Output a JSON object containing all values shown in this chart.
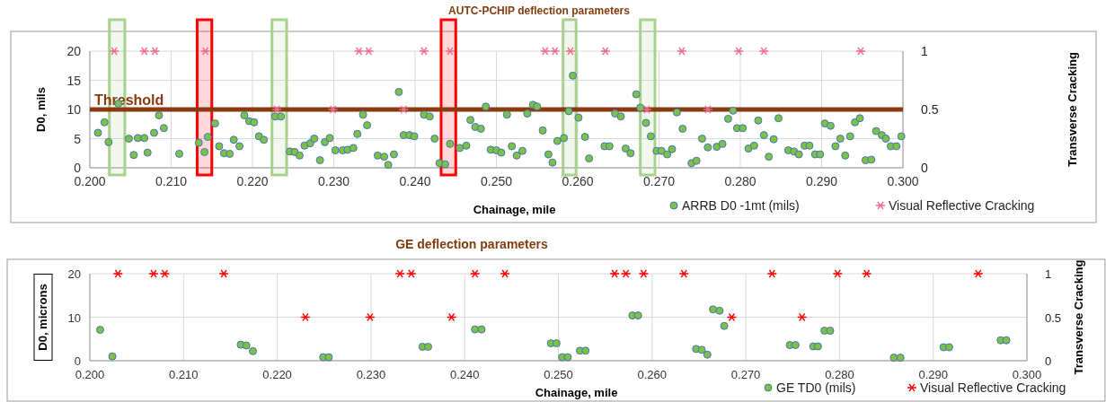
{
  "chart_data": [
    {
      "type": "scatter",
      "title": "AUTC-PCHIP deflection parameters",
      "xlabel": "Chainage, mile",
      "ylabel": "D0, mils",
      "y2label": "Transverse Cracking",
      "xlim": [
        0.2,
        0.3
      ],
      "xticks": [
        {
          "value": 0.2,
          "label": "0.200"
        },
        {
          "value": 0.21,
          "label": "0.210"
        },
        {
          "value": 0.22,
          "label": "0.220"
        },
        {
          "value": 0.23,
          "label": "0.230"
        },
        {
          "value": 0.24,
          "label": "0.240"
        },
        {
          "value": 0.25,
          "label": "0.250"
        },
        {
          "value": 0.26,
          "label": "0.260"
        },
        {
          "value": 0.27,
          "label": "0.270"
        },
        {
          "value": 0.28,
          "label": "0.280"
        },
        {
          "value": 0.29,
          "label": "0.290"
        },
        {
          "value": 0.3,
          "label": "0.300"
        }
      ],
      "ylim": [
        0,
        20
      ],
      "yticks": [
        0,
        5,
        10,
        15,
        20
      ],
      "y2lim": [
        0,
        1
      ],
      "y2ticks": [
        0,
        0.5,
        1
      ],
      "grid": true,
      "legend": "bottom right",
      "ref_lines": [
        {
          "axis": "y",
          "value": 10,
          "label": "Threshold",
          "color": "#8b3a0f"
        }
      ],
      "bands": [
        {
          "axis": "x",
          "from": 0.2024,
          "to": 0.2043,
          "color": "#a9d18e"
        },
        {
          "axis": "x",
          "from": 0.2132,
          "to": 0.215,
          "color": "#ff0000"
        },
        {
          "axis": "x",
          "from": 0.2224,
          "to": 0.2242,
          "color": "#a9d18e"
        },
        {
          "axis": "x",
          "from": 0.2432,
          "to": 0.245,
          "color": "#ff0000"
        },
        {
          "axis": "x",
          "from": 0.2582,
          "to": 0.2598,
          "color": "#a9d18e"
        },
        {
          "axis": "x",
          "from": 0.2677,
          "to": 0.2695,
          "color": "#a9d18e"
        }
      ],
      "series": [
        {
          "name": "ARRB D0 -1mt (mils)",
          "color": "#7dc242",
          "marker": "circle",
          "x": [
            0.201,
            0.2018,
            0.2023,
            0.2035,
            0.2048,
            0.2054,
            0.2059,
            0.2067,
            0.2071,
            0.2079,
            0.2085,
            0.2091,
            0.211,
            0.2134,
            0.2141,
            0.2145,
            0.2154,
            0.2159,
            0.2165,
            0.2172,
            0.2177,
            0.2184,
            0.219,
            0.2196,
            0.2202,
            0.2208,
            0.2214,
            0.2228,
            0.2235,
            0.2246,
            0.2252,
            0.2258,
            0.2264,
            0.2271,
            0.2276,
            0.2283,
            0.2289,
            0.2295,
            0.2302,
            0.2311,
            0.2317,
            0.2324,
            0.2329,
            0.2336,
            0.2341,
            0.2354,
            0.2362,
            0.2367,
            0.2374,
            0.238,
            0.2386,
            0.2393,
            0.2399,
            0.2411,
            0.2418,
            0.2424,
            0.243,
            0.2437,
            0.2443,
            0.2455,
            0.2463,
            0.2468,
            0.2474,
            0.2481,
            0.2487,
            0.2493,
            0.25,
            0.2506,
            0.2513,
            0.2519,
            0.2525,
            0.2532,
            0.2538,
            0.2545,
            0.255,
            0.2557,
            0.2564,
            0.2569,
            0.2575,
            0.2583,
            0.2589,
            0.2594,
            0.2601,
            0.2609,
            0.2614,
            0.2633,
            0.2639,
            0.2646,
            0.2653,
            0.2659,
            0.2665,
            0.2672,
            0.2677,
            0.2684,
            0.269,
            0.2697,
            0.2703,
            0.271,
            0.2716,
            0.2722,
            0.2729,
            0.274,
            0.2746,
            0.2753,
            0.276,
            0.2771,
            0.2778,
            0.2785,
            0.2791,
            0.2796,
            0.2803,
            0.281,
            0.2817,
            0.2822,
            0.2829,
            0.2835,
            0.2841,
            0.2847,
            0.2859,
            0.2866,
            0.2872,
            0.2879,
            0.2885,
            0.2892,
            0.2898,
            0.2904,
            0.2911,
            0.2917,
            0.2923,
            0.2929,
            0.2935,
            0.2941,
            0.2947,
            0.2954,
            0.2961,
            0.2967,
            0.2974,
            0.2979,
            0.2985,
            0.2992,
            0.2998
          ],
          "values": [
            6.0,
            7.8,
            4.4,
            11.0,
            5.0,
            2.2,
            5.1,
            5.1,
            2.6,
            6.0,
            9.0,
            6.8,
            2.4,
            4.3,
            2.7,
            5.3,
            7.6,
            3.7,
            2.5,
            2.4,
            4.8,
            3.7,
            9.0,
            8.0,
            7.8,
            5.4,
            4.8,
            8.8,
            8.8,
            2.8,
            2.7,
            2.1,
            3.8,
            4.2,
            5.0,
            1.3,
            4.4,
            5.1,
            3.0,
            3.0,
            3.1,
            3.4,
            5.8,
            9.1,
            7.3,
            2.1,
            1.9,
            0.5,
            2.3,
            13.0,
            5.6,
            5.6,
            5.4,
            9.1,
            8.8,
            5.0,
            0.8,
            0.6,
            4.1,
            3.4,
            3.8,
            8.2,
            7.0,
            6.7,
            10.5,
            3.1,
            3.0,
            2.6,
            9.1,
            3.7,
            2.1,
            2.9,
            9.3,
            10.8,
            10.5,
            6.4,
            2.3,
            0.9,
            4.6,
            5.1,
            9.7,
            15.8,
            8.6,
            5.3,
            1.6,
            3.7,
            3.7,
            9.3,
            8.8,
            3.3,
            2.5,
            12.6,
            10.3,
            7.7,
            5.4,
            2.9,
            2.9,
            2.3,
            3.2,
            9.5,
            6.7,
            0.8,
            1.2,
            5.0,
            3.5,
            3.6,
            4.1,
            8.4,
            9.8,
            6.8,
            6.8,
            3.3,
            3.8,
            8.1,
            5.6,
            1.9,
            4.9,
            8.5,
            3.0,
            2.8,
            2.3,
            3.8,
            3.8,
            2.3,
            2.3,
            7.6,
            7.2,
            3.7,
            5.0,
            2.1,
            5.4,
            7.8,
            8.5,
            1.3,
            1.4,
            6.3,
            5.6,
            5.0,
            3.7,
            3.7,
            5.4
          ]
        },
        {
          "name": "Visual Reflective Cracking",
          "color": "#f06c8c",
          "marker": "cross",
          "axis": "y2",
          "x": [
            0.203,
            0.2067,
            0.208,
            0.2142,
            0.223,
            0.2299,
            0.2331,
            0.2343,
            0.2386,
            0.2411,
            0.2443,
            0.256,
            0.2572,
            0.2591,
            0.2634,
            0.2685,
            0.2728,
            0.276,
            0.2798,
            0.2829,
            0.2948
          ],
          "values": [
            1,
            1,
            1,
            1,
            0.5,
            0.5,
            1,
            1,
            0.5,
            1,
            1,
            1,
            1,
            1,
            1,
            0.5,
            1,
            0.5,
            1,
            1,
            1
          ]
        }
      ]
    },
    {
      "type": "scatter",
      "title": "GE deflection parameters",
      "xlabel": "Chainage, mile",
      "ylabel": "D0, microns",
      "y2label": "Transverse Cracking",
      "xlim": [
        0.2,
        0.3
      ],
      "xticks": [
        {
          "value": 0.2,
          "label": "0.200"
        },
        {
          "value": 0.21,
          "label": "0.210"
        },
        {
          "value": 0.22,
          "label": "0.220"
        },
        {
          "value": 0.23,
          "label": "0.230"
        },
        {
          "value": 0.24,
          "label": "0.240"
        },
        {
          "value": 0.25,
          "label": "0.250"
        },
        {
          "value": 0.26,
          "label": "0.260"
        },
        {
          "value": 0.27,
          "label": "0.270"
        },
        {
          "value": 0.28,
          "label": "0.280"
        },
        {
          "value": 0.29,
          "label": "0.290"
        },
        {
          "value": 0.3,
          "label": "0.300"
        }
      ],
      "ylim": [
        0,
        20
      ],
      "yticks": [
        0,
        10,
        20
      ],
      "y2lim": [
        0,
        1
      ],
      "y2ticks": [
        0,
        0.5,
        1
      ],
      "grid": true,
      "legend": "bottom right",
      "series": [
        {
          "name": "GE TD0 (mils)",
          "color": "#7dc242",
          "marker": "circle",
          "x": [
            0.2011,
            0.2024,
            0.2161,
            0.2167,
            0.2174,
            0.2249,
            0.2255,
            0.2355,
            0.2361,
            0.2411,
            0.2418,
            0.2492,
            0.2498,
            0.2504,
            0.251,
            0.2523,
            0.2529,
            0.2579,
            0.2585,
            0.2647,
            0.2653,
            0.2659,
            0.2665,
            0.2672,
            0.2677,
            0.2747,
            0.2753,
            0.2772,
            0.2777,
            0.2784,
            0.279,
            0.2858,
            0.2865,
            0.2911,
            0.2917,
            0.2972,
            0.2978
          ],
          "values": [
            7.1,
            1.0,
            3.7,
            3.5,
            2.2,
            0.8,
            0.8,
            3.2,
            3.2,
            7.2,
            7.2,
            4.0,
            4.0,
            0.8,
            0.8,
            2.3,
            2.3,
            10.4,
            10.4,
            2.7,
            2.5,
            1.4,
            11.8,
            11.5,
            8.0,
            3.6,
            3.6,
            3.3,
            3.3,
            6.9,
            6.9,
            0.7,
            0.7,
            3.1,
            3.1,
            4.7,
            4.7
          ]
        },
        {
          "name": "Visual Reflective Cracking",
          "color": "#ff0000",
          "marker": "cross",
          "axis": "y2",
          "x": [
            0.203,
            0.2068,
            0.208,
            0.2143,
            0.223,
            0.2299,
            0.2331,
            0.2343,
            0.2386,
            0.2411,
            0.2443,
            0.256,
            0.2572,
            0.2591,
            0.2634,
            0.2685,
            0.2728,
            0.276,
            0.2798,
            0.2829,
            0.2948
          ],
          "values": [
            1,
            1,
            1,
            1,
            0.5,
            0.5,
            1,
            1,
            0.5,
            1,
            1,
            1,
            1,
            1,
            1,
            0.5,
            1,
            0.5,
            1,
            1,
            1
          ]
        }
      ]
    }
  ]
}
